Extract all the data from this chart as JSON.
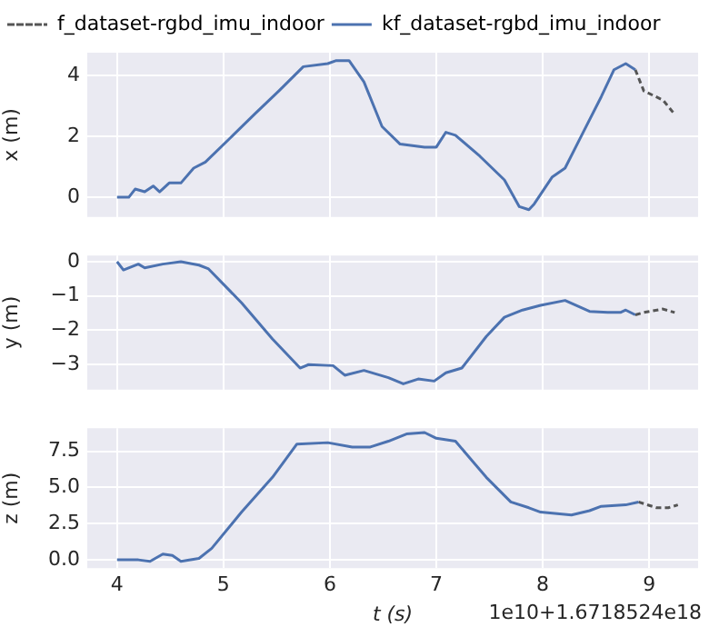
{
  "chart_data": [
    {
      "type": "line",
      "ylabel": "x (m)",
      "xlim": [
        3.72,
        9.46
      ],
      "xticks": [
        4,
        5,
        6,
        7,
        8,
        9
      ],
      "ylim": [
        -0.65,
        4.76
      ],
      "yticks": [
        0,
        2,
        4
      ],
      "tick_labels": "y",
      "grid": true,
      "legend": "top",
      "marker": "none",
      "series": [
        {
          "name": "f_dataset-rgbd_imu_indoor",
          "color": "#555555",
          "line_style": "dashed",
          "x": [
            8.87,
            8.95,
            9.13,
            9.24
          ],
          "values": [
            4.2,
            3.5,
            3.2,
            2.73
          ]
        },
        {
          "name": "kf_dataset-rgbd_imu_indoor",
          "color": "#4c72b0",
          "line_style": "solid",
          "x": [
            4.0,
            4.11,
            4.17,
            4.26,
            4.34,
            4.4,
            4.49,
            4.6,
            4.72,
            4.83,
            5.06,
            5.29,
            5.52,
            5.75,
            5.98,
            6.06,
            6.18,
            6.32,
            6.49,
            6.66,
            6.89,
            7.0,
            7.09,
            7.18,
            7.41,
            7.64,
            7.78,
            7.87,
            7.92,
            8.09,
            8.21,
            8.38,
            8.55,
            8.67,
            8.78,
            8.87
          ],
          "values": [
            0,
            0,
            0.27,
            0.18,
            0.37,
            0.18,
            0.47,
            0.47,
            0.96,
            1.16,
            1.94,
            2.73,
            3.5,
            4.3,
            4.4,
            4.5,
            4.5,
            3.8,
            2.33,
            1.75,
            1.65,
            1.65,
            2.14,
            2.04,
            1.35,
            0.57,
            -0.31,
            -0.41,
            -0.22,
            0.67,
            0.96,
            2.14,
            3.31,
            4.2,
            4.4,
            4.2
          ]
        }
      ]
    },
    {
      "type": "line",
      "ylabel": "y (m)",
      "xlim": [
        3.72,
        9.46
      ],
      "xticks": [
        4,
        5,
        6,
        7,
        8,
        9
      ],
      "ylim": [
        -3.73,
        0.18
      ],
      "yticks": [
        0,
        {
          "value": -1,
          "label": "−1"
        },
        {
          "value": -2,
          "label": "−2"
        },
        {
          "value": -3,
          "label": "−3"
        }
      ],
      "tick_labels": "y",
      "grid": true,
      "marker": "none",
      "series": [
        {
          "color": "#555555",
          "line_style": "dashed",
          "x": [
            8.87,
            8.95,
            9.13,
            9.24
          ],
          "values": [
            -1.55,
            -1.48,
            -1.38,
            -1.48
          ]
        },
        {
          "color": "#4c72b0",
          "line_style": "solid",
          "x": [
            4.0,
            4.06,
            4.2,
            4.26,
            4.43,
            4.6,
            4.77,
            4.86,
            5.17,
            5.46,
            5.72,
            5.8,
            6.03,
            6.14,
            6.32,
            6.55,
            6.69,
            6.83,
            6.98,
            7.09,
            7.24,
            7.47,
            7.64,
            7.81,
            7.98,
            8.21,
            8.44,
            8.61,
            8.73,
            8.78,
            8.87
          ],
          "values": [
            0,
            -0.24,
            -0.07,
            -0.18,
            -0.07,
            0,
            -0.1,
            -0.21,
            -1.2,
            -2.25,
            -3.1,
            -3.0,
            -3.03,
            -3.31,
            -3.17,
            -3.38,
            -3.56,
            -3.42,
            -3.48,
            -3.24,
            -3.1,
            -2.18,
            -1.62,
            -1.41,
            -1.27,
            -1.13,
            -1.45,
            -1.48,
            -1.48,
            -1.41,
            -1.55
          ]
        }
      ]
    },
    {
      "type": "line",
      "ylabel": "z (m)",
      "xlabel": "t (s)",
      "annotations": [
        "1e10+1.6718524e18"
      ],
      "xlim": [
        3.72,
        9.46
      ],
      "xticks": [
        4,
        5,
        6,
        7,
        8,
        9
      ],
      "ylim": [
        -0.57,
        9.1
      ],
      "yticks": [
        {
          "value": 0,
          "label": "0.0"
        },
        {
          "value": 2.5,
          "label": "2.5"
        },
        {
          "value": 5,
          "label": "5.0"
        },
        {
          "value": 7.5,
          "label": "7.5"
        }
      ],
      "grid": true,
      "marker": "none",
      "series": [
        {
          "color": "#555555",
          "line_style": "dashed",
          "x": [
            8.9,
            9.07,
            9.18,
            9.27
          ],
          "values": [
            4.0,
            3.6,
            3.6,
            3.8
          ]
        },
        {
          "color": "#4c72b0",
          "line_style": "solid",
          "x": [
            4.0,
            4.2,
            4.31,
            4.43,
            4.52,
            4.6,
            4.77,
            4.89,
            5.17,
            5.46,
            5.69,
            5.98,
            6.21,
            6.38,
            6.55,
            6.72,
            6.89,
            7.0,
            7.18,
            7.47,
            7.7,
            7.87,
            7.98,
            8.27,
            8.44,
            8.55,
            8.78,
            8.9
          ],
          "values": [
            0,
            0,
            -0.1,
            0.4,
            0.3,
            -0.1,
            0.1,
            0.8,
            3.3,
            5.7,
            8.0,
            8.1,
            7.8,
            7.8,
            8.2,
            8.7,
            8.8,
            8.4,
            8.2,
            5.7,
            4.0,
            3.6,
            3.3,
            3.1,
            3.4,
            3.7,
            3.8,
            4.0
          ]
        }
      ]
    }
  ]
}
